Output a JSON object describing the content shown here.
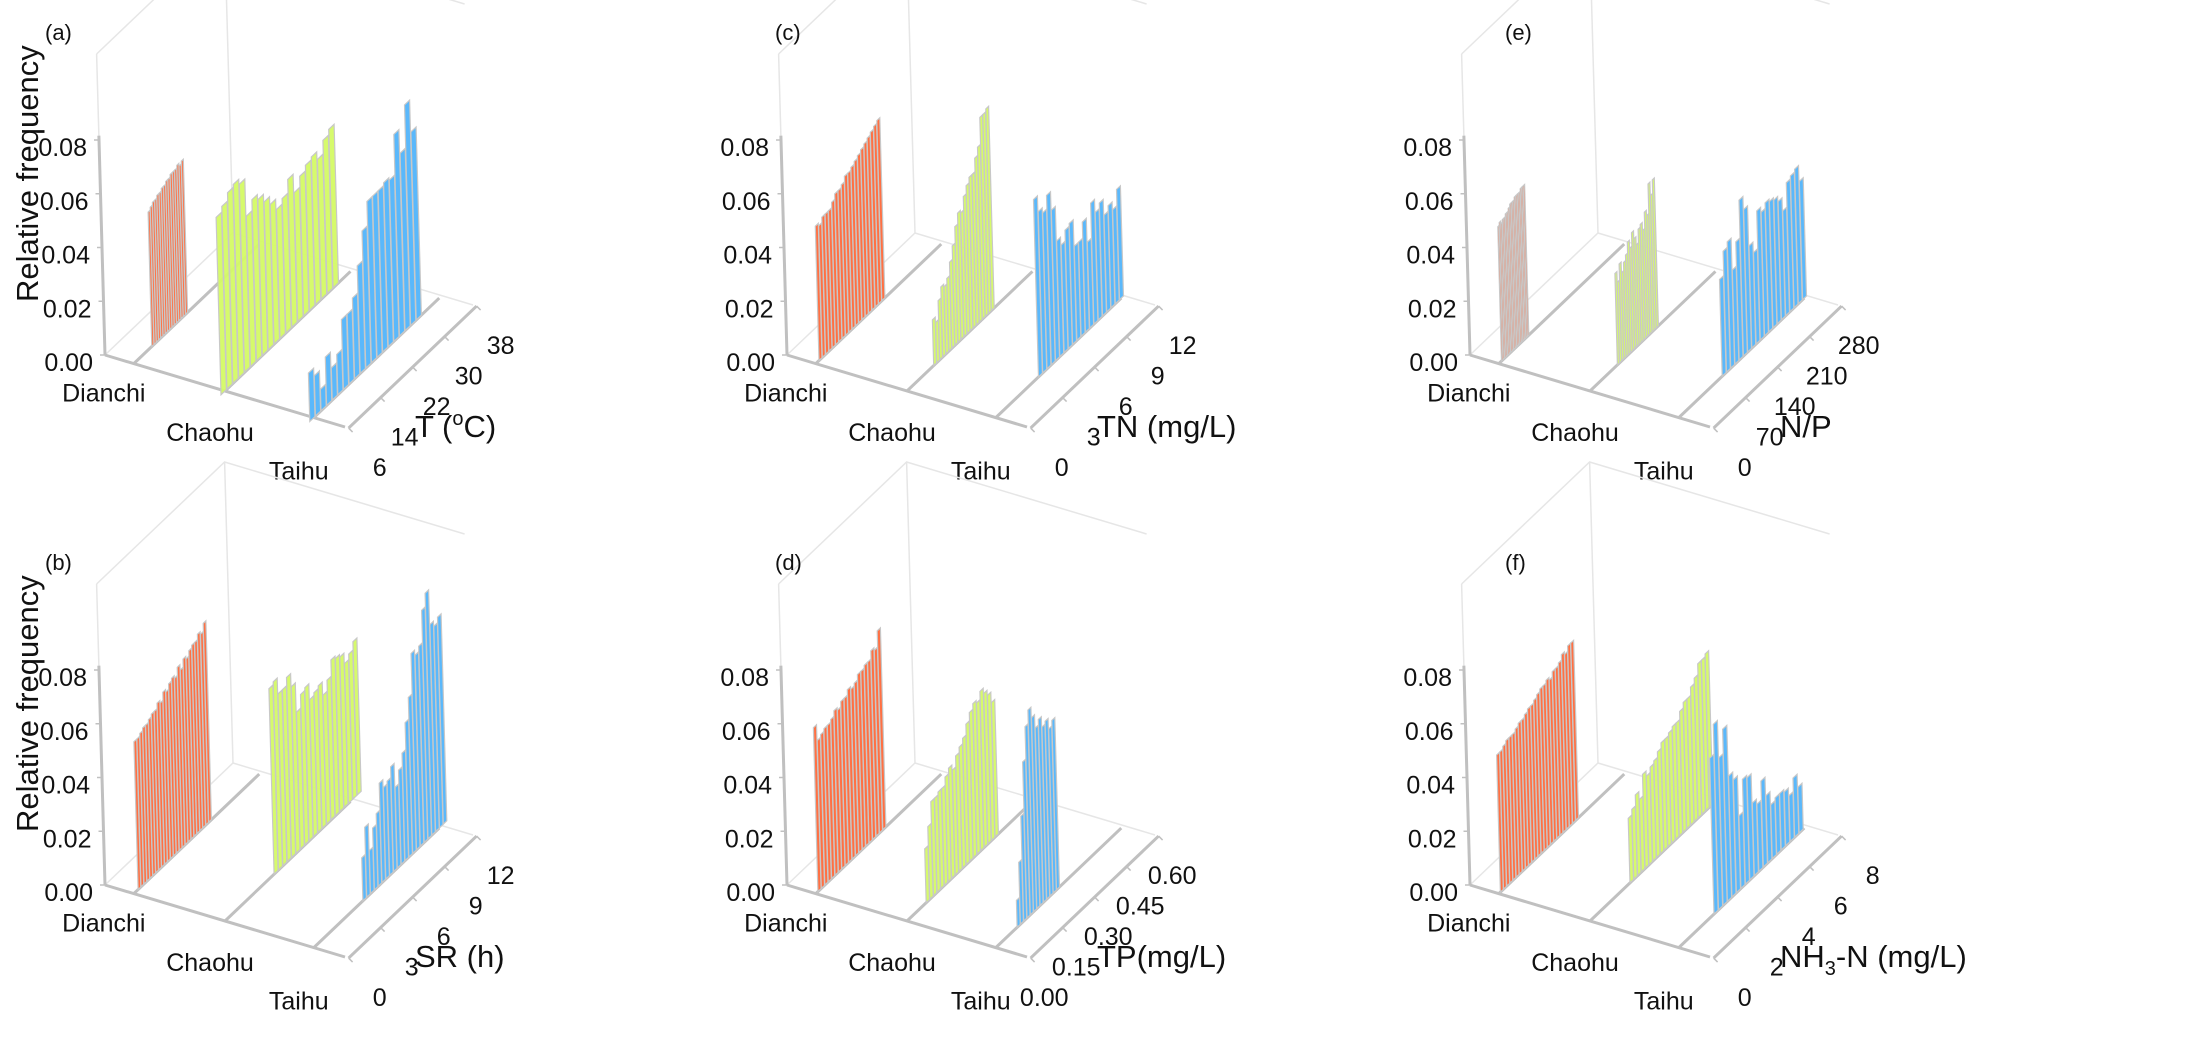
{
  "figure": {
    "colors": {
      "Dianchi": "#ff7043",
      "Chaohu": "#d4fa64",
      "Taihu": "#5ab8fb",
      "axis": "#c0c0c0",
      "bar_edge": "#c8c8c8",
      "frame": "#e6e6e6"
    }
  },
  "chart_data": [
    {
      "id": "a",
      "panel_label": "(a)",
      "type": "bar",
      "title": "",
      "zlabel": "Relative frequency",
      "show_zlabel": true,
      "xlabel": "T (°C)",
      "xlabel_parts": [
        "T (",
        "o",
        "C)"
      ],
      "categories": [
        "Dianchi",
        "Chaohu",
        "Taihu"
      ],
      "z_ticks": [
        "0.00",
        "0.02",
        "0.04",
        "0.06",
        "0.08"
      ],
      "zlim": [
        0,
        0.08
      ],
      "x_ticks": [
        "6",
        "14",
        "22",
        "30",
        "38"
      ],
      "xlim": [
        6,
        38
      ],
      "series": [
        {
          "name": "Dianchi",
          "range": [
            10.5,
            19.5
          ],
          "values": [
            0.05,
            0.051,
            0.052,
            0.052,
            0.053,
            0.053,
            0.054,
            0.054,
            0.055,
            0.055,
            0.056,
            0.056,
            0.056,
            0.057,
            0.056,
            0.057
          ]
        },
        {
          "name": "Chaohu",
          "range": [
            5.0,
            34.5
          ],
          "values": [
            0.066,
            0.068,
            0.071,
            0.072,
            0.07,
            0.056,
            0.06,
            0.058,
            0.055,
            0.052,
            0.048,
            0.05,
            0.055,
            0.048,
            0.052,
            0.054,
            0.055,
            0.052,
            0.057,
            0.059
          ]
        },
        {
          "name": "Taihu",
          "range": [
            5.0,
            33.0
          ],
          "values": [
            0.018,
            0.015,
            0.008,
            0.018,
            0.012,
            0.015,
            0.026,
            0.026,
            0.03,
            0.04,
            0.051,
            0.06,
            0.06,
            0.06,
            0.061,
            0.06,
            0.075,
            0.066,
            0.082,
            0.07
          ]
        }
      ]
    },
    {
      "id": "c",
      "panel_label": "(c)",
      "type": "bar",
      "title": "",
      "zlabel": "",
      "show_zlabel": false,
      "xlabel": "TN (mg/L)",
      "xlabel_parts": [
        "TN (mg/L)"
      ],
      "categories": [
        "Dianchi",
        "Chaohu",
        "Taihu"
      ],
      "z_ticks": [
        "0.00",
        "0.02",
        "0.04",
        "0.06",
        "0.08"
      ],
      "zlim": [
        0,
        0.08
      ],
      "x_ticks": [
        "0",
        "3",
        "6",
        "9",
        "12"
      ],
      "xlim": [
        0,
        12
      ],
      "series": [
        {
          "name": "Dianchi",
          "range": [
            0.3,
            6.5
          ],
          "values": [
            0.05,
            0.049,
            0.051,
            0.051,
            0.051,
            0.053,
            0.055,
            0.055,
            0.056,
            0.058,
            0.058,
            0.059,
            0.06,
            0.061,
            0.062,
            0.063,
            0.064,
            0.065,
            0.066,
            0.067
          ]
        },
        {
          "name": "Chaohu",
          "range": [
            2.5,
            8.2
          ],
          "values": [
            0.017,
            0.015,
            0.022,
            0.026,
            0.025,
            0.027,
            0.032,
            0.037,
            0.043,
            0.047,
            0.046,
            0.051,
            0.054,
            0.056,
            0.056,
            0.061,
            0.064,
            0.074,
            0.074,
            0.075
          ]
        },
        {
          "name": "Taihu",
          "range": [
            4.0,
            12.0
          ],
          "values": [
            0.066,
            0.06,
            0.058,
            0.063,
            0.056,
            0.043,
            0.04,
            0.044,
            0.045,
            0.035,
            0.035,
            0.041,
            0.032,
            0.045,
            0.04,
            0.042,
            0.036,
            0.038,
            0.035,
            0.041
          ]
        }
      ]
    },
    {
      "id": "e",
      "panel_label": "(e)",
      "type": "bar",
      "title": "",
      "zlabel": "",
      "show_zlabel": false,
      "xlabel": "N/P",
      "xlabel_parts": [
        "N/P"
      ],
      "categories": [
        "Dianchi",
        "Chaohu",
        "Taihu"
      ],
      "z_ticks": [
        "0.00",
        "0.02",
        "0.04",
        "0.06",
        "0.08"
      ],
      "zlim": [
        0,
        0.08
      ],
      "x_ticks": [
        "0",
        "70",
        "140",
        "210",
        "280"
      ],
      "xlim": [
        0,
        280
      ],
      "series": [
        {
          "name": "Dianchi",
          "range": [
            6,
            66
          ],
          "values": [
            0.05,
            0.051,
            0.05,
            0.051,
            0.051,
            0.052,
            0.052,
            0.053,
            0.054,
            0.054,
            0.054,
            0.055,
            0.055,
            0.055,
            0.055,
            0.056,
            0.056,
            0.056
          ]
        },
        {
          "name": "Chaohu",
          "range": [
            60,
            150
          ],
          "values": [
            0.034,
            0.03,
            0.036,
            0.032,
            0.035,
            0.037,
            0.041,
            0.038,
            0.043,
            0.04,
            0.037,
            0.042,
            0.043,
            0.04,
            0.046,
            0.044,
            0.055,
            0.05,
            0.055
          ]
        },
        {
          "name": "Taihu",
          "range": [
            95,
            280
          ],
          "values": [
            0.036,
            0.045,
            0.047,
            0.035,
            0.044,
            0.058,
            0.053,
            0.038,
            0.034,
            0.048,
            0.046,
            0.048,
            0.047,
            0.046,
            0.044,
            0.039,
            0.048,
            0.049,
            0.05,
            0.044
          ]
        }
      ]
    },
    {
      "id": "b",
      "panel_label": "(b)",
      "type": "bar",
      "title": "",
      "zlabel": "Relative frequency",
      "show_zlabel": true,
      "xlabel": "SR (h)",
      "xlabel_parts": [
        "SR (h)"
      ],
      "categories": [
        "Dianchi",
        "Chaohu",
        "Taihu"
      ],
      "z_ticks": [
        "0.00",
        "0.02",
        "0.04",
        "0.06",
        "0.08"
      ],
      "zlim": [
        0,
        0.08
      ],
      "x_ticks": [
        "0",
        "3",
        "6",
        "9",
        "12"
      ],
      "xlim": [
        0,
        12
      ],
      "series": [
        {
          "name": "Dianchi",
          "range": [
            0.4,
            7.3
          ],
          "values": [
            0.055,
            0.055,
            0.056,
            0.057,
            0.057,
            0.058,
            0.059,
            0.059,
            0.061,
            0.06,
            0.063,
            0.062,
            0.064,
            0.065,
            0.064,
            0.067,
            0.065,
            0.068,
            0.067,
            0.069,
            0.07,
            0.07,
            0.072,
            0.071,
            0.074
          ]
        },
        {
          "name": "Chaohu",
          "range": [
            4.6,
            12.8
          ],
          "values": [
            0.069,
            0.07,
            0.064,
            0.064,
            0.067,
            0.062,
            0.051,
            0.056,
            0.057,
            0.051,
            0.052,
            0.053,
            0.048,
            0.052,
            0.058,
            0.057,
            0.056,
            0.052,
            0.054,
            0.057
          ]
        },
        {
          "name": "Taihu",
          "range": [
            4.6,
            12.5
          ],
          "values": [
            0.016,
            0.026,
            0.016,
            0.023,
            0.027,
            0.037,
            0.034,
            0.035,
            0.039,
            0.03,
            0.035,
            0.04,
            0.05,
            0.058,
            0.073,
            0.071,
            0.073,
            0.085,
            0.09,
            0.077,
            0.075,
            0.077
          ]
        }
      ]
    },
    {
      "id": "d",
      "panel_label": "(d)",
      "type": "bar",
      "title": "",
      "zlabel": "",
      "show_zlabel": false,
      "xlabel": "TP(mg/L)",
      "xlabel_parts": [
        "TP(mg/L)"
      ],
      "categories": [
        "Dianchi",
        "Chaohu",
        "Taihu"
      ],
      "z_ticks": [
        "0.00",
        "0.02",
        "0.04",
        "0.06",
        "0.08"
      ],
      "zlim": [
        0,
        0.08
      ],
      "x_ticks": [
        "0.00",
        "0.15",
        "0.30",
        "0.45",
        "0.60"
      ],
      "xlim": [
        0,
        0.6
      ],
      "series": [
        {
          "name": "Dianchi",
          "range": [
            0.01,
            0.33
          ],
          "values": [
            0.061,
            0.055,
            0.056,
            0.057,
            0.057,
            0.058,
            0.06,
            0.059,
            0.061,
            0.061,
            0.063,
            0.062,
            0.063,
            0.065,
            0.065,
            0.066,
            0.066,
            0.069,
            0.068,
            0.074
          ]
        },
        {
          "name": "Chaohu",
          "range": [
            0.09,
            0.43
          ],
          "values": [
            0.02,
            0.027,
            0.035,
            0.035,
            0.036,
            0.036,
            0.039,
            0.041,
            0.039,
            0.043,
            0.045,
            0.047,
            0.051,
            0.054,
            0.056,
            0.055,
            0.058,
            0.056,
            0.054,
            0.05
          ]
        },
        {
          "name": "Taihu",
          "range": [
            0.1,
            0.3
          ],
          "values": [
            0.01,
            0.023,
            0.039,
            0.058,
            0.07,
            0.075,
            0.071,
            0.066,
            0.068,
            0.064,
            0.065,
            0.061,
            0.063
          ]
        }
      ]
    },
    {
      "id": "f",
      "panel_label": "(f)",
      "type": "bar",
      "title": "",
      "zlabel": "",
      "show_zlabel": false,
      "xlabel": "NH3-N (mg/L)",
      "xlabel_parts": [
        "NH",
        "3",
        "-N (mg/L)"
      ],
      "categories": [
        "Dianchi",
        "Chaohu",
        "Taihu"
      ],
      "z_ticks": [
        "0.00",
        "0.02",
        "0.04",
        "0.06",
        "0.08"
      ],
      "zlim": [
        0,
        0.08
      ],
      "x_ticks": [
        "0",
        "2",
        "4",
        "6",
        "8"
      ],
      "xlim": [
        0,
        8
      ],
      "series": [
        {
          "name": "Dianchi",
          "range": [
            0.1,
            5.0
          ],
          "values": [
            0.051,
            0.051,
            0.052,
            0.053,
            0.053,
            0.053,
            0.054,
            0.055,
            0.055,
            0.056,
            0.057,
            0.057,
            0.058,
            0.059,
            0.06,
            0.06,
            0.061,
            0.06,
            0.062,
            0.062,
            0.063,
            0.065,
            0.064,
            0.066,
            0.066
          ]
        },
        {
          "name": "Chaohu",
          "range": [
            2.5,
            7.7
          ],
          "values": [
            0.024,
            0.026,
            0.03,
            0.027,
            0.035,
            0.033,
            0.035,
            0.036,
            0.038,
            0.04,
            0.04,
            0.041,
            0.042,
            0.042,
            0.045,
            0.047,
            0.047,
            0.05,
            0.052,
            0.056,
            0.056,
            0.057
          ]
        },
        {
          "name": "Taihu",
          "range": [
            2.2,
            7.8
          ],
          "values": [
            0.058,
            0.069,
            0.055,
            0.064,
            0.045,
            0.042,
            0.027,
            0.039,
            0.038,
            0.027,
            0.025,
            0.032,
            0.025,
            0.02,
            0.021,
            0.021,
            0.02,
            0.017,
            0.022,
            0.017
          ]
        }
      ]
    }
  ]
}
